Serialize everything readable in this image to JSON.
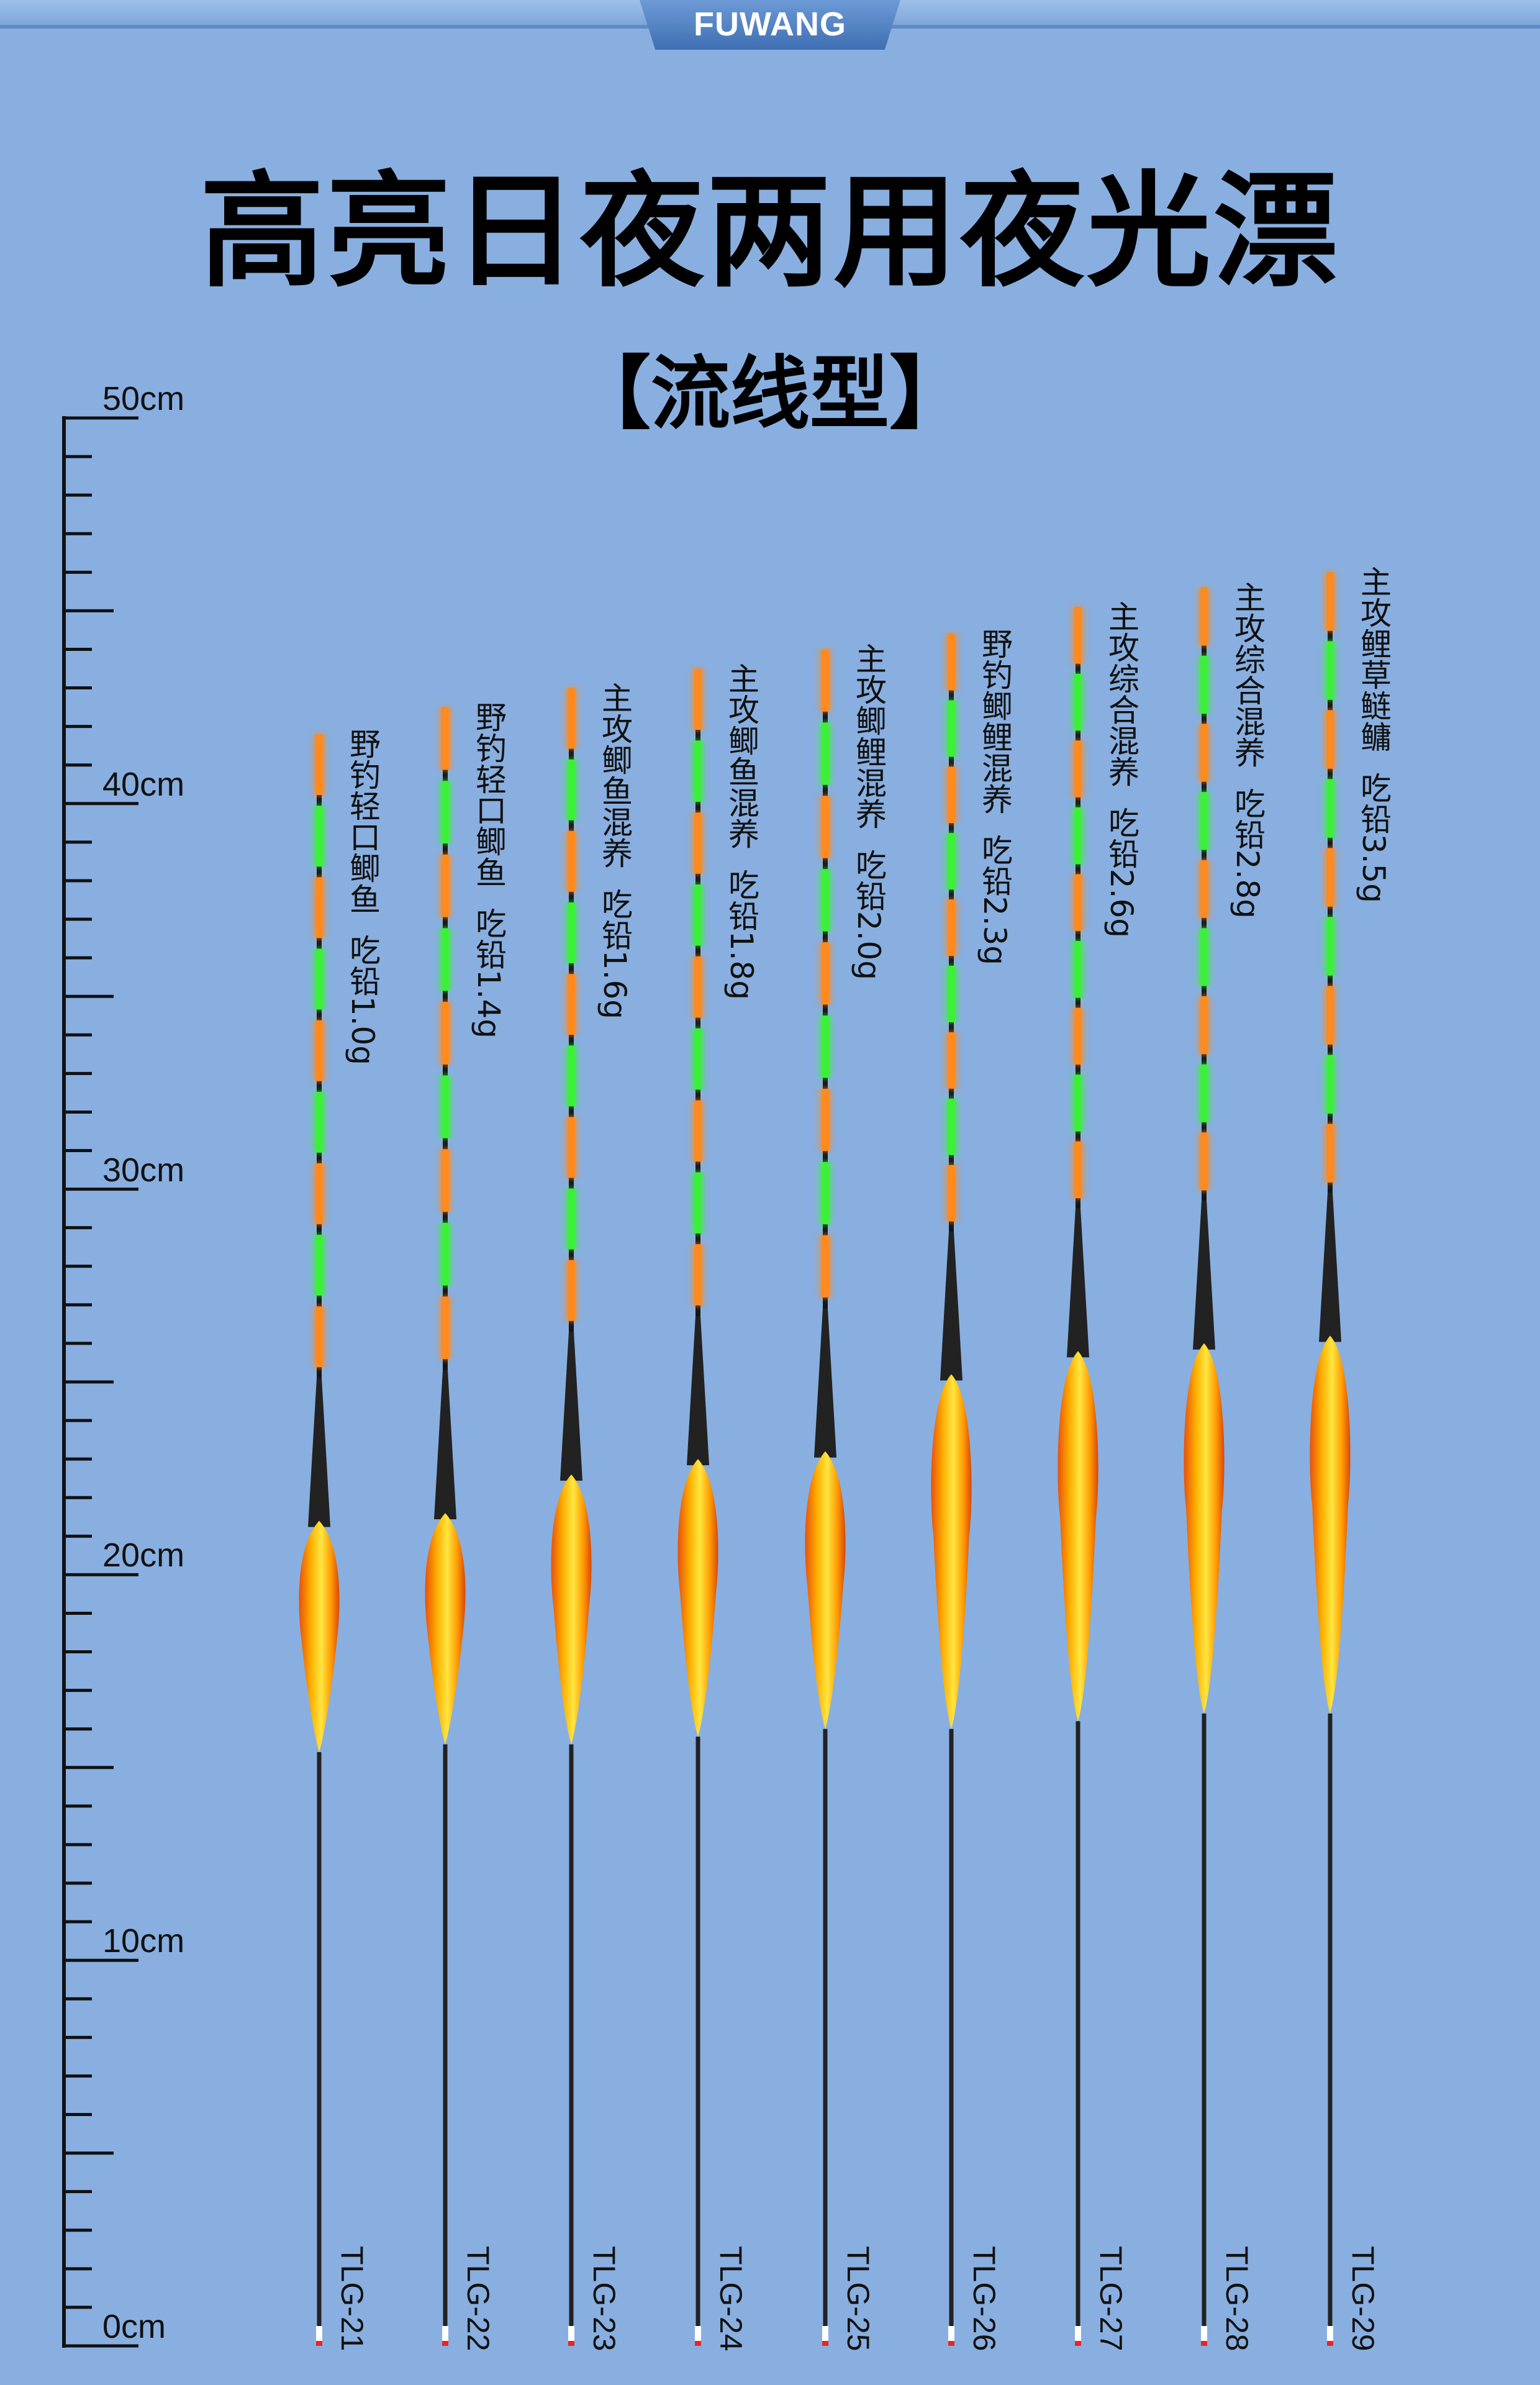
{
  "header": {
    "brand": "FUWANG"
  },
  "title": "高亮日夜两用夜光漂",
  "subtitle": "【流线型】",
  "ruler": {
    "unit": "cm",
    "min": 0,
    "max": 50,
    "labels": [
      {
        "value": 50,
        "text": "50cm"
      },
      {
        "value": 40,
        "text": "40cm"
      },
      {
        "value": 30,
        "text": "30cm"
      },
      {
        "value": 20,
        "text": "20cm"
      },
      {
        "value": 10,
        "text": "10cm"
      },
      {
        "value": 0,
        "text": "0cm"
      }
    ]
  },
  "colors": {
    "background": "#88afe0",
    "orange": "#ff8a1e",
    "green": "#3cf03a",
    "body_yellow": "#ffd21a",
    "body_orange": "#ef5a0a"
  },
  "floats": [
    {
      "model": "TLG-21",
      "desc": "野钓轻口鲫鱼  吃铅1.0g",
      "length_cm": 41.8
    },
    {
      "model": "TLG-22",
      "desc": "野钓轻口鲫鱼  吃铅1.4g",
      "length_cm": 42.5
    },
    {
      "model": "TLG-23",
      "desc": "主攻鲫鱼混养  吃铅1.6g",
      "length_cm": 43.0
    },
    {
      "model": "TLG-24",
      "desc": "主攻鲫鱼混养  吃铅1.8g",
      "length_cm": 43.5
    },
    {
      "model": "TLG-25",
      "desc": "主攻鲫鲤混养  吃铅2.0g",
      "length_cm": 44.0
    },
    {
      "model": "TLG-26",
      "desc": "野钓鲫鲤混养  吃铅2.3g",
      "length_cm": 44.4
    },
    {
      "model": "TLG-27",
      "desc": "主攻综合混养  吃铅2.6g",
      "length_cm": 45.1
    },
    {
      "model": "TLG-28",
      "desc": "主攻综合混养  吃铅2.8g",
      "length_cm": 45.6
    },
    {
      "model": "TLG-29",
      "desc": "主攻鲤草鲢鳙  吃铅3.5g",
      "length_cm": 46.0
    }
  ]
}
